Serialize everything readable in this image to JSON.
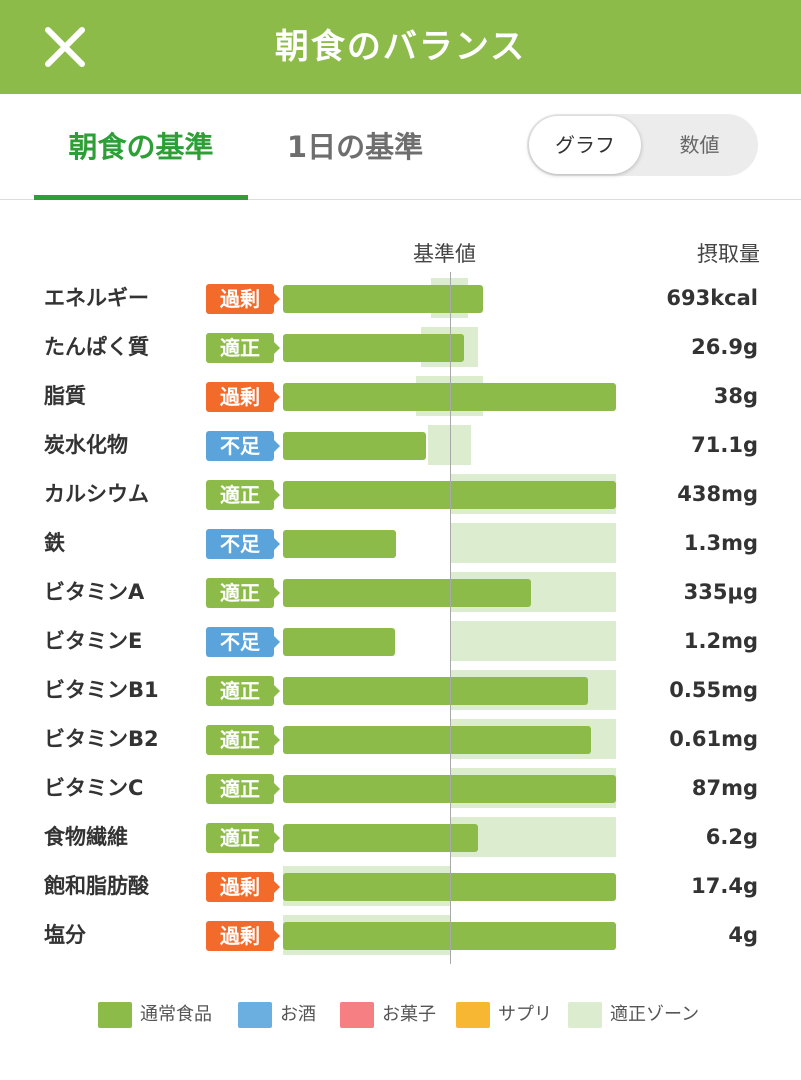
{
  "header": {
    "title": "朝食のバランス",
    "close_icon": "close-icon"
  },
  "tabs": [
    {
      "label": "朝食の基準",
      "active": true
    },
    {
      "label": "1日の基準",
      "active": false
    }
  ],
  "view_toggle": {
    "options": [
      "グラフ",
      "数値"
    ],
    "selected": "グラフ"
  },
  "colors": {
    "header": "#8cbb4a",
    "active_tab": "#2e9e37",
    "over": "#f26b2a",
    "ok": "#8cbb4a",
    "short": "#5aa4db",
    "zone": "#dceccf"
  },
  "chart_data": {
    "type": "bar",
    "orientation": "horizontal",
    "headers": {
      "reference": "基準値",
      "intake": "摂取量"
    },
    "reference_value": 100,
    "rows": [
      {
        "name": "エネルギー",
        "status": "過剰",
        "status_type": "over",
        "pct": 120,
        "zone": [
          89,
          111
        ],
        "value": "693kcal"
      },
      {
        "name": "たんぱく質",
        "status": "適正",
        "status_type": "ok",
        "pct": 109,
        "zone": [
          83,
          117
        ],
        "value": "26.9g"
      },
      {
        "name": "脂質",
        "status": "過剰",
        "status_type": "over",
        "pct": 200,
        "zone": [
          80,
          120
        ],
        "value": "38g"
      },
      {
        "name": "炭水化物",
        "status": "不足",
        "status_type": "short",
        "pct": 86,
        "zone": [
          87,
          113
        ],
        "value": "71.1g"
      },
      {
        "name": "カルシウム",
        "status": "適正",
        "status_type": "ok",
        "pct": 200,
        "zone": [
          100,
          200
        ],
        "value": "438mg"
      },
      {
        "name": "鉄",
        "status": "不足",
        "status_type": "short",
        "pct": 68,
        "zone": [
          100,
          200
        ],
        "value": "1.3mg"
      },
      {
        "name": "ビタミンA",
        "status": "適正",
        "status_type": "ok",
        "pct": 149,
        "zone": [
          100,
          200
        ],
        "value": "335μg"
      },
      {
        "name": "ビタミンE",
        "status": "不足",
        "status_type": "short",
        "pct": 67,
        "zone": [
          100,
          200
        ],
        "value": "1.2mg"
      },
      {
        "name": "ビタミンB1",
        "status": "適正",
        "status_type": "ok",
        "pct": 183,
        "zone": [
          100,
          200
        ],
        "value": "0.55mg"
      },
      {
        "name": "ビタミンB2",
        "status": "適正",
        "status_type": "ok",
        "pct": 185,
        "zone": [
          100,
          200
        ],
        "value": "0.61mg"
      },
      {
        "name": "ビタミンC",
        "status": "適正",
        "status_type": "ok",
        "pct": 200,
        "zone": [
          100,
          200
        ],
        "value": "87mg"
      },
      {
        "name": "食物繊維",
        "status": "適正",
        "status_type": "ok",
        "pct": 117,
        "zone": [
          100,
          200
        ],
        "value": "6.2g"
      },
      {
        "name": "飽和脂肪酸",
        "status": "過剰",
        "status_type": "over",
        "pct": 200,
        "zone": [
          0,
          100
        ],
        "value": "17.4g"
      },
      {
        "name": "塩分",
        "status": "過剰",
        "status_type": "over",
        "pct": 200,
        "zone": [
          0,
          100
        ],
        "value": "4g"
      }
    ],
    "legend": [
      {
        "label": "通常食品",
        "color": "#8cbb4a"
      },
      {
        "label": "お酒",
        "color": "#6aafe0"
      },
      {
        "label": "お菓子",
        "color": "#f57f82"
      },
      {
        "label": "サプリ",
        "color": "#f7b733"
      },
      {
        "label": "適正ゾーン",
        "color": "#dceccf"
      }
    ]
  }
}
